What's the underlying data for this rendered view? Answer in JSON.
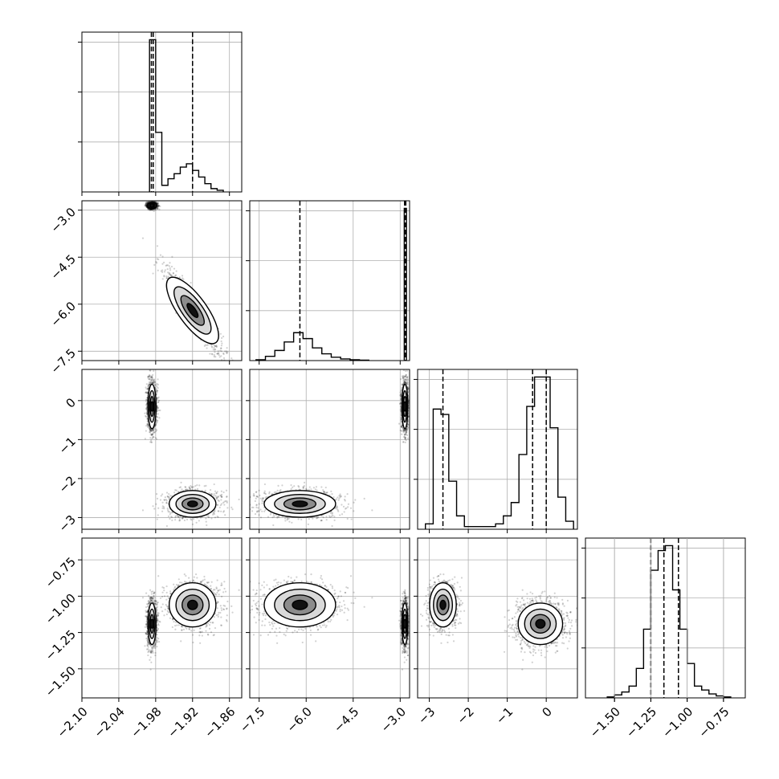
{
  "chart_data": {
    "type": "scatter",
    "subtype": "corner",
    "title": "",
    "parameters": [
      {
        "index": 0,
        "range": [
          -2.1,
          -1.84
        ],
        "ticks": [
          -2.1,
          -2.04,
          -1.98,
          -1.92,
          -1.86
        ],
        "tick_labels": [
          "−2.10",
          "−2.04",
          "−1.98",
          "−1.92",
          "−1.86"
        ]
      },
      {
        "index": 1,
        "range": [
          -7.8,
          -2.7
        ],
        "ticks": [
          -7.5,
          -6.0,
          -4.5,
          -3.0
        ],
        "tick_labels": [
          "−7.5",
          "−6.0",
          "−4.5",
          "−3.0"
        ]
      },
      {
        "index": 2,
        "range": [
          -3.3,
          0.8
        ],
        "ticks": [
          -3,
          -2,
          -1,
          0
        ],
        "tick_labels": [
          "−3",
          "−2",
          "−1",
          "0"
        ]
      },
      {
        "index": 3,
        "range": [
          -1.7,
          -0.6
        ],
        "ticks": [
          -1.5,
          -1.25,
          -1.0,
          -0.75
        ],
        "tick_labels": [
          "−1.50",
          "−1.25",
          "−1.00",
          "−0.75"
        ]
      }
    ],
    "modes": [
      {
        "weight": 0.6,
        "mean": [
          -1.986,
          -2.85,
          -0.15,
          -1.19
        ],
        "sd": [
          0.0035,
          0.05,
          0.3,
          0.075
        ]
      },
      {
        "weight": 0.4,
        "mean": [
          -1.92,
          -6.2,
          -2.65,
          -1.06
        ],
        "sd": [
          0.02,
          0.6,
          0.18,
          0.08
        ]
      }
    ],
    "histograms": [
      {
        "param": 0,
        "bin_edges": [
          -1.99,
          -1.98,
          -1.97,
          -1.96,
          -1.95,
          -1.94,
          -1.93,
          -1.92,
          -1.91,
          -1.9,
          -1.89,
          -1.88,
          -1.87
        ],
        "counts": [
          0.92,
          0.36,
          0.04,
          0.08,
          0.11,
          0.15,
          0.17,
          0.13,
          0.09,
          0.05,
          0.02,
          0.01
        ],
        "quantile_lines": [
          -1.987,
          -1.984,
          -1.92
        ]
      },
      {
        "param": 1,
        "bin_edges": [
          -7.6,
          -7.3,
          -7.0,
          -6.7,
          -6.4,
          -6.1,
          -5.8,
          -5.5,
          -5.2,
          -4.9,
          -4.6,
          -4.3,
          -4.0
        ],
        "counts": [
          0.01,
          0.05,
          0.12,
          0.22,
          0.33,
          0.26,
          0.15,
          0.08,
          0.04,
          0.02,
          0.01,
          0.005
        ],
        "spike": {
          "x": [
            -2.87,
            -2.8
          ],
          "count": 1.8
        },
        "quantile_lines": [
          -6.2,
          -2.86,
          -2.82
        ]
      },
      {
        "param": 2,
        "bin_edges": [
          -3.1,
          -2.9,
          -2.7,
          -2.5,
          -2.3,
          -2.1,
          -1.9,
          -1.7,
          -1.5,
          -1.3,
          -1.1,
          -0.9,
          -0.7,
          -0.5,
          -0.3,
          -0.1,
          0.1,
          0.3,
          0.5,
          0.7
        ],
        "counts": [
          0.02,
          0.45,
          0.43,
          0.18,
          0.05,
          0.01,
          0.01,
          0.01,
          0.01,
          0.02,
          0.05,
          0.1,
          0.28,
          0.46,
          0.57,
          0.57,
          0.38,
          0.12,
          0.03
        ],
        "quantile_lines": [
          -2.65,
          -0.35,
          0.0
        ]
      },
      {
        "param": 3,
        "bin_edges": [
          -1.55,
          -1.5,
          -1.45,
          -1.4,
          -1.35,
          -1.3,
          -1.25,
          -1.2,
          -1.15,
          -1.1,
          -1.05,
          -1.0,
          -0.95,
          -0.9,
          -0.85,
          -0.8,
          -0.75,
          -0.7
        ],
        "counts": [
          0.01,
          0.03,
          0.06,
          0.12,
          0.3,
          0.7,
          1.3,
          1.5,
          1.55,
          1.1,
          0.7,
          0.35,
          0.12,
          0.08,
          0.04,
          0.02,
          0.01
        ],
        "quantile_lines": [
          -1.25,
          -1.16,
          -1.06
        ]
      }
    ],
    "panels_2d": [
      {
        "x_param": 0,
        "y_param": 1
      },
      {
        "x_param": 0,
        "y_param": 2
      },
      {
        "x_param": 1,
        "y_param": 2
      },
      {
        "x_param": 0,
        "y_param": 3
      },
      {
        "x_param": 1,
        "y_param": 3
      },
      {
        "x_param": 2,
        "y_param": 3
      }
    ],
    "grid": true,
    "contours": true
  }
}
